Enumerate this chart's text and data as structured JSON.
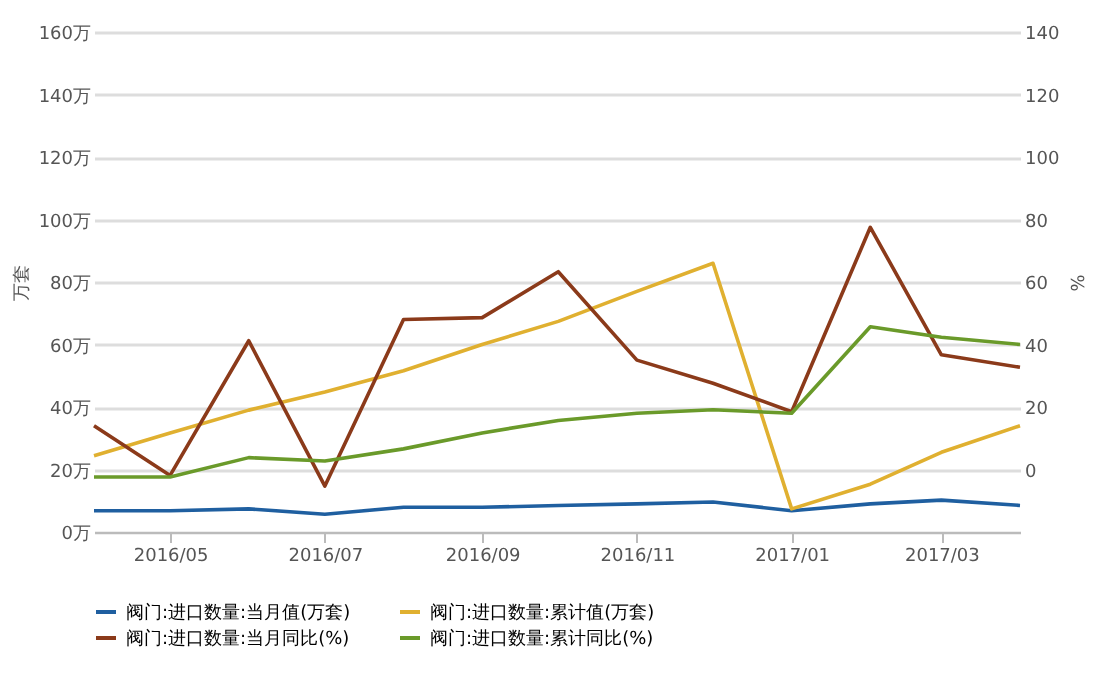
{
  "chart_data": {
    "type": "line",
    "ylabel": "万套",
    "y2label": "%",
    "x": [
      "2016-04",
      "2016-05",
      "2016-06",
      "2016-07",
      "2016-08",
      "2016-09",
      "2016-10",
      "2016-11",
      "2016-12",
      "2017-01",
      "2017-02",
      "2017-03",
      "2017-04"
    ],
    "xlim": [
      "2016-04",
      "2017-04"
    ],
    "xticks": [
      {
        "value": "2016-05",
        "label": "2016/05"
      },
      {
        "value": "2016-07",
        "label": "2016/07"
      },
      {
        "value": "2016-09",
        "label": "2016/09"
      },
      {
        "value": "2016-11",
        "label": "2016/11"
      },
      {
        "value": "2017-01",
        "label": "2017/01"
      },
      {
        "value": "2017-03",
        "label": "2017/03"
      }
    ],
    "ylim": [
      0,
      160
    ],
    "yticks": [
      {
        "value": 0,
        "label": "0万"
      },
      {
        "value": 20,
        "label": "20万"
      },
      {
        "value": 40,
        "label": "40万"
      },
      {
        "value": 60,
        "label": "60万"
      },
      {
        "value": 80,
        "label": "80万"
      },
      {
        "value": 100,
        "label": "100万"
      },
      {
        "value": 120,
        "label": "120万"
      },
      {
        "value": 140,
        "label": "140万"
      },
      {
        "value": 160,
        "label": "160万"
      }
    ],
    "y2lim": [
      -20,
      140
    ],
    "y2ticks": [
      0,
      20,
      40,
      60,
      80,
      100,
      120,
      140
    ],
    "series": [
      {
        "name": "阀门:进口数量:当月值(万套)",
        "color": "#1f5fa0",
        "values": [
          6.8,
          6.8,
          7.4,
          5.7,
          7.9,
          7.9,
          8.5,
          9,
          9.6,
          6.8,
          9,
          10.2,
          8.5
        ]
      },
      {
        "name": "阀门:进口数量:累计值(万套)",
        "color": "#e0b030",
        "values": [
          24.4,
          31.7,
          39,
          44.8,
          51.6,
          60,
          67.4,
          77,
          86,
          7.4,
          15.3,
          25.5,
          34
        ]
      },
      {
        "name": "阀门:进口数量:当月同比(%)",
        "color": "#8b3a1a",
        "axis": "y2",
        "values": [
          14,
          -1.9,
          41.2,
          -5.3,
          48,
          48.6,
          63.3,
          35,
          27.6,
          18.5,
          77.5,
          36.7,
          32.7
        ]
      },
      {
        "name": "阀门:进口数量:累计同比(%)",
        "color": "#6a9a2a",
        "axis": "y2",
        "values": [
          -2.4,
          -2.4,
          3.8,
          2.7,
          6.6,
          11.7,
          15.7,
          18,
          19.1,
          18,
          45.7,
          42.3,
          40
        ]
      }
    ],
    "grid": "y",
    "legend": "bottom",
    "marker": "none"
  }
}
